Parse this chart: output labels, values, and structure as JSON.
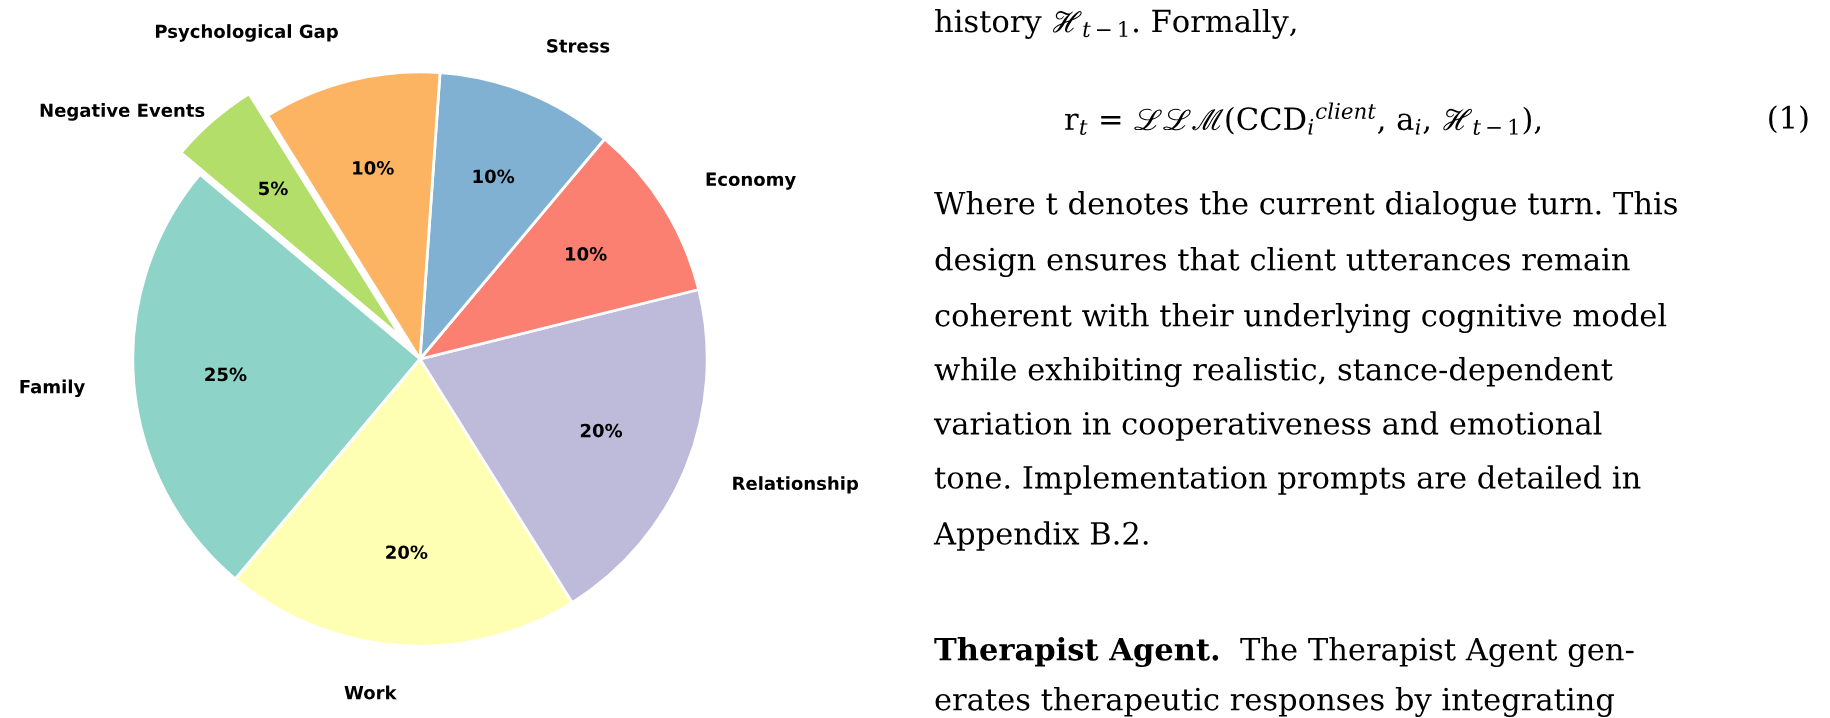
{
  "chart_data": {
    "type": "pie",
    "categories": [
      "Family",
      "Work",
      "Relationship",
      "Economy",
      "Stress",
      "Psychological Gap",
      "Negative Events"
    ],
    "values": [
      25,
      20,
      20,
      10,
      10,
      10,
      5
    ],
    "colors": [
      "#8dd3c7",
      "#ffffb3",
      "#bebada",
      "#fb8072",
      "#80b1d3",
      "#fdb462",
      "#b3de69"
    ],
    "value_labels": [
      "25%",
      "20%",
      "20%",
      "10%",
      "10%",
      "10%",
      "5%"
    ],
    "annotations": [
      "history ℋ$_{t−1}$. Formally,",
      "r$_{t}$ = ℒℒℳ(CCD$_{i}$$^{client}$, a$_{i}$, ℋ$_{t−1}$),",
      "(1)",
      "Where t denotes the current dialogue turn. This",
      "design ensures that client utterances remain",
      "coherent with their underlying cognitive model",
      "while exhibiting realistic, stance-dependent",
      "variation in cooperativeness and emotional",
      "tone. Implementation prompts are detailed in",
      "Appendix B.2.",
      "Therapist Agent.",
      "The Therapist Agent gen-",
      "erates therapeutic responses by integrating"
    ]
  }
}
